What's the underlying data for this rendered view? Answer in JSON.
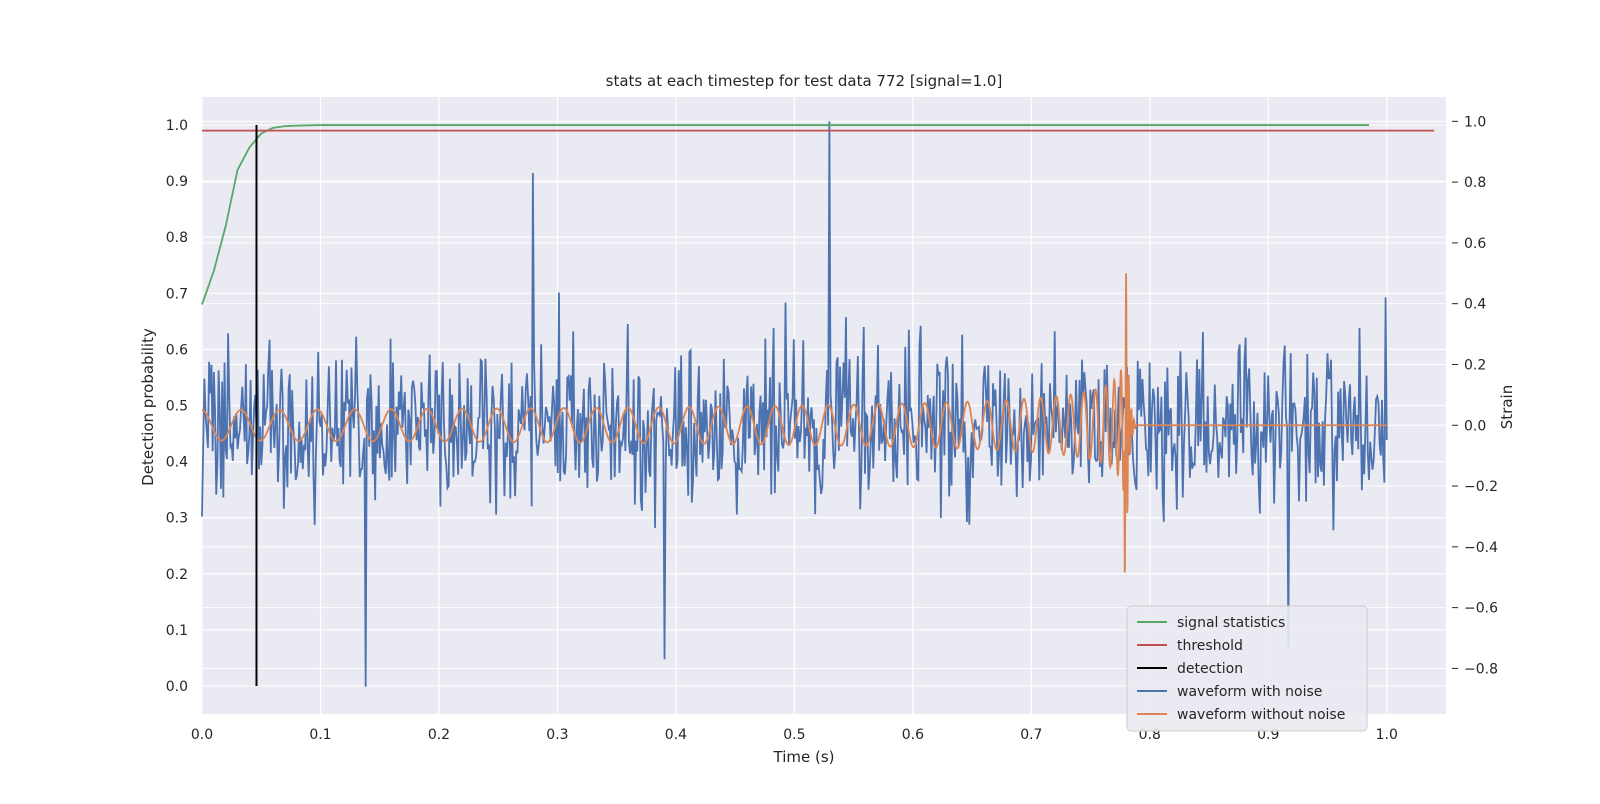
{
  "chart_data": {
    "type": "line",
    "title": "stats at each timestep for test data 772 [signal=1.0]",
    "xlabel": "Time (s)",
    "ylabel": "Detection probability",
    "y2label": "Strain",
    "xlim": [
      0.0,
      1.05
    ],
    "ylim": [
      -0.05,
      1.05
    ],
    "y2lim": [
      -0.95,
      1.08
    ],
    "xticks": [
      "0.0",
      "0.1",
      "0.2",
      "0.3",
      "0.4",
      "0.5",
      "0.6",
      "0.7",
      "0.8",
      "0.9",
      "1.0"
    ],
    "yticks": [
      "0.0",
      "0.1",
      "0.2",
      "0.3",
      "0.4",
      "0.5",
      "0.6",
      "0.7",
      "0.8",
      "0.9",
      "1.0"
    ],
    "y2ticks": [
      "−0.8",
      "−0.6",
      "−0.4",
      "−0.2",
      "0.0",
      "0.2",
      "0.4",
      "0.6",
      "0.8",
      "1.0"
    ],
    "grid": true,
    "legend_position": "lower-right",
    "legend": [
      "signal statistics",
      "threshold",
      "detection",
      "waveform with noise",
      "waveform without noise"
    ],
    "colors": {
      "signal_statistics": "#55a868",
      "threshold": "#c44e52",
      "detection": "#000000",
      "waveform_with_noise": "#4c72b0",
      "waveform_without_noise": "#dd8452",
      "plot_background": "#eaeaf2",
      "grid": "#ffffff"
    },
    "signal_statistics": {
      "x": [
        0.0,
        0.01,
        0.02,
        0.03,
        0.04,
        0.05,
        0.06,
        0.07,
        0.08,
        0.1,
        0.2,
        0.4,
        0.6,
        0.8,
        0.985
      ],
      "y": [
        0.68,
        0.74,
        0.82,
        0.92,
        0.96,
        0.985,
        0.995,
        0.998,
        0.999,
        1.0,
        1.0,
        1.0,
        1.0,
        1.0,
        1.0
      ]
    },
    "threshold": {
      "value": 0.99,
      "xrange": [
        0.0,
        1.04
      ]
    },
    "detection": {
      "x": 0.046,
      "yrange": [
        0.0,
        1.0
      ]
    },
    "waveform_without_noise": {
      "x_start": 0.0,
      "merger_time": 0.78,
      "x_end": 1.0,
      "start_frequency_hz": 30,
      "start_amplitude": 0.05,
      "peak_amplitude": 0.57,
      "post_merger_value": 0.0
    },
    "waveform_with_noise": {
      "x_range": [
        0.0,
        1.0
      ],
      "samples": 1000,
      "strain_range": [
        -0.86,
        1.0
      ],
      "notable_points": [
        {
          "x": 0.138,
          "y": -0.86
        },
        {
          "x": 0.279,
          "y": 0.83
        },
        {
          "x": 0.39,
          "y": -0.77
        },
        {
          "x": 0.53,
          "y": 1.0
        },
        {
          "x": 0.917,
          "y": -0.73
        }
      ]
    }
  }
}
